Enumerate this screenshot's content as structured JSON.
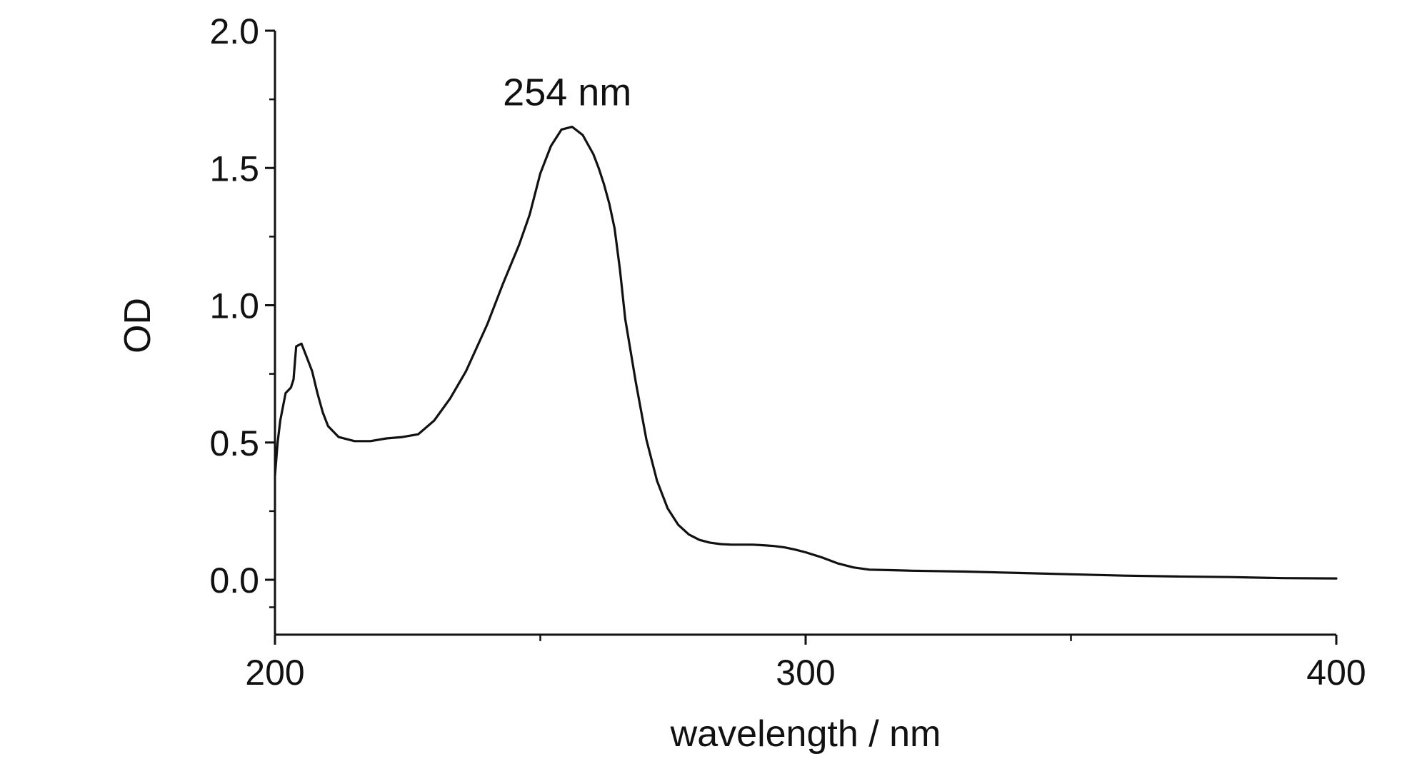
{
  "chart_data": {
    "type": "line",
    "title": "",
    "xlabel": "wavelength / nm",
    "ylabel": "OD",
    "xlim": [
      200,
      400
    ],
    "ylim": [
      -0.2,
      2.0
    ],
    "x_ticks": [
      200,
      300,
      400
    ],
    "x_tick_labels": [
      "200",
      "300",
      "400"
    ],
    "x_minor_ticks": [
      250,
      350
    ],
    "y_ticks": [
      0.0,
      0.5,
      1.0,
      1.5,
      2.0
    ],
    "y_tick_labels": [
      "0.0",
      "0.5",
      "1.0",
      "1.5",
      "2.0"
    ],
    "y_minor_ticks": [
      -0.1,
      0.25,
      0.75,
      1.25,
      1.75
    ],
    "grid": false,
    "legend": "none",
    "annotations": [
      {
        "text": "254 nm",
        "x": 254,
        "y": 1.65
      }
    ],
    "series": [
      {
        "color": "#111111",
        "x": [
          200,
          200.5,
          201,
          202,
          203,
          203.5,
          204,
          205,
          206,
          207,
          208,
          209,
          210,
          212,
          215,
          218,
          221,
          224,
          227,
          230,
          233,
          236,
          240,
          243,
          246,
          248,
          250,
          252,
          254,
          256,
          258,
          260,
          261,
          262,
          263,
          264,
          265,
          266,
          268,
          270,
          272,
          274,
          276,
          278,
          280,
          282,
          284,
          286,
          288,
          290,
          292,
          294,
          296,
          298,
          300,
          303,
          306,
          309,
          312,
          316,
          320,
          330,
          340,
          350,
          360,
          370,
          380,
          390,
          400
        ],
        "y": [
          0.38,
          0.5,
          0.58,
          0.68,
          0.7,
          0.73,
          0.85,
          0.86,
          0.81,
          0.76,
          0.68,
          0.61,
          0.56,
          0.52,
          0.505,
          0.505,
          0.515,
          0.52,
          0.53,
          0.58,
          0.66,
          0.76,
          0.93,
          1.08,
          1.22,
          1.33,
          1.48,
          1.58,
          1.64,
          1.65,
          1.62,
          1.55,
          1.5,
          1.44,
          1.37,
          1.28,
          1.13,
          0.95,
          0.72,
          0.51,
          0.36,
          0.26,
          0.2,
          0.165,
          0.145,
          0.135,
          0.13,
          0.128,
          0.128,
          0.128,
          0.126,
          0.123,
          0.118,
          0.11,
          0.1,
          0.082,
          0.06,
          0.045,
          0.037,
          0.035,
          0.033,
          0.03,
          0.025,
          0.02,
          0.015,
          0.012,
          0.01,
          0.006,
          0.005
        ]
      }
    ]
  }
}
